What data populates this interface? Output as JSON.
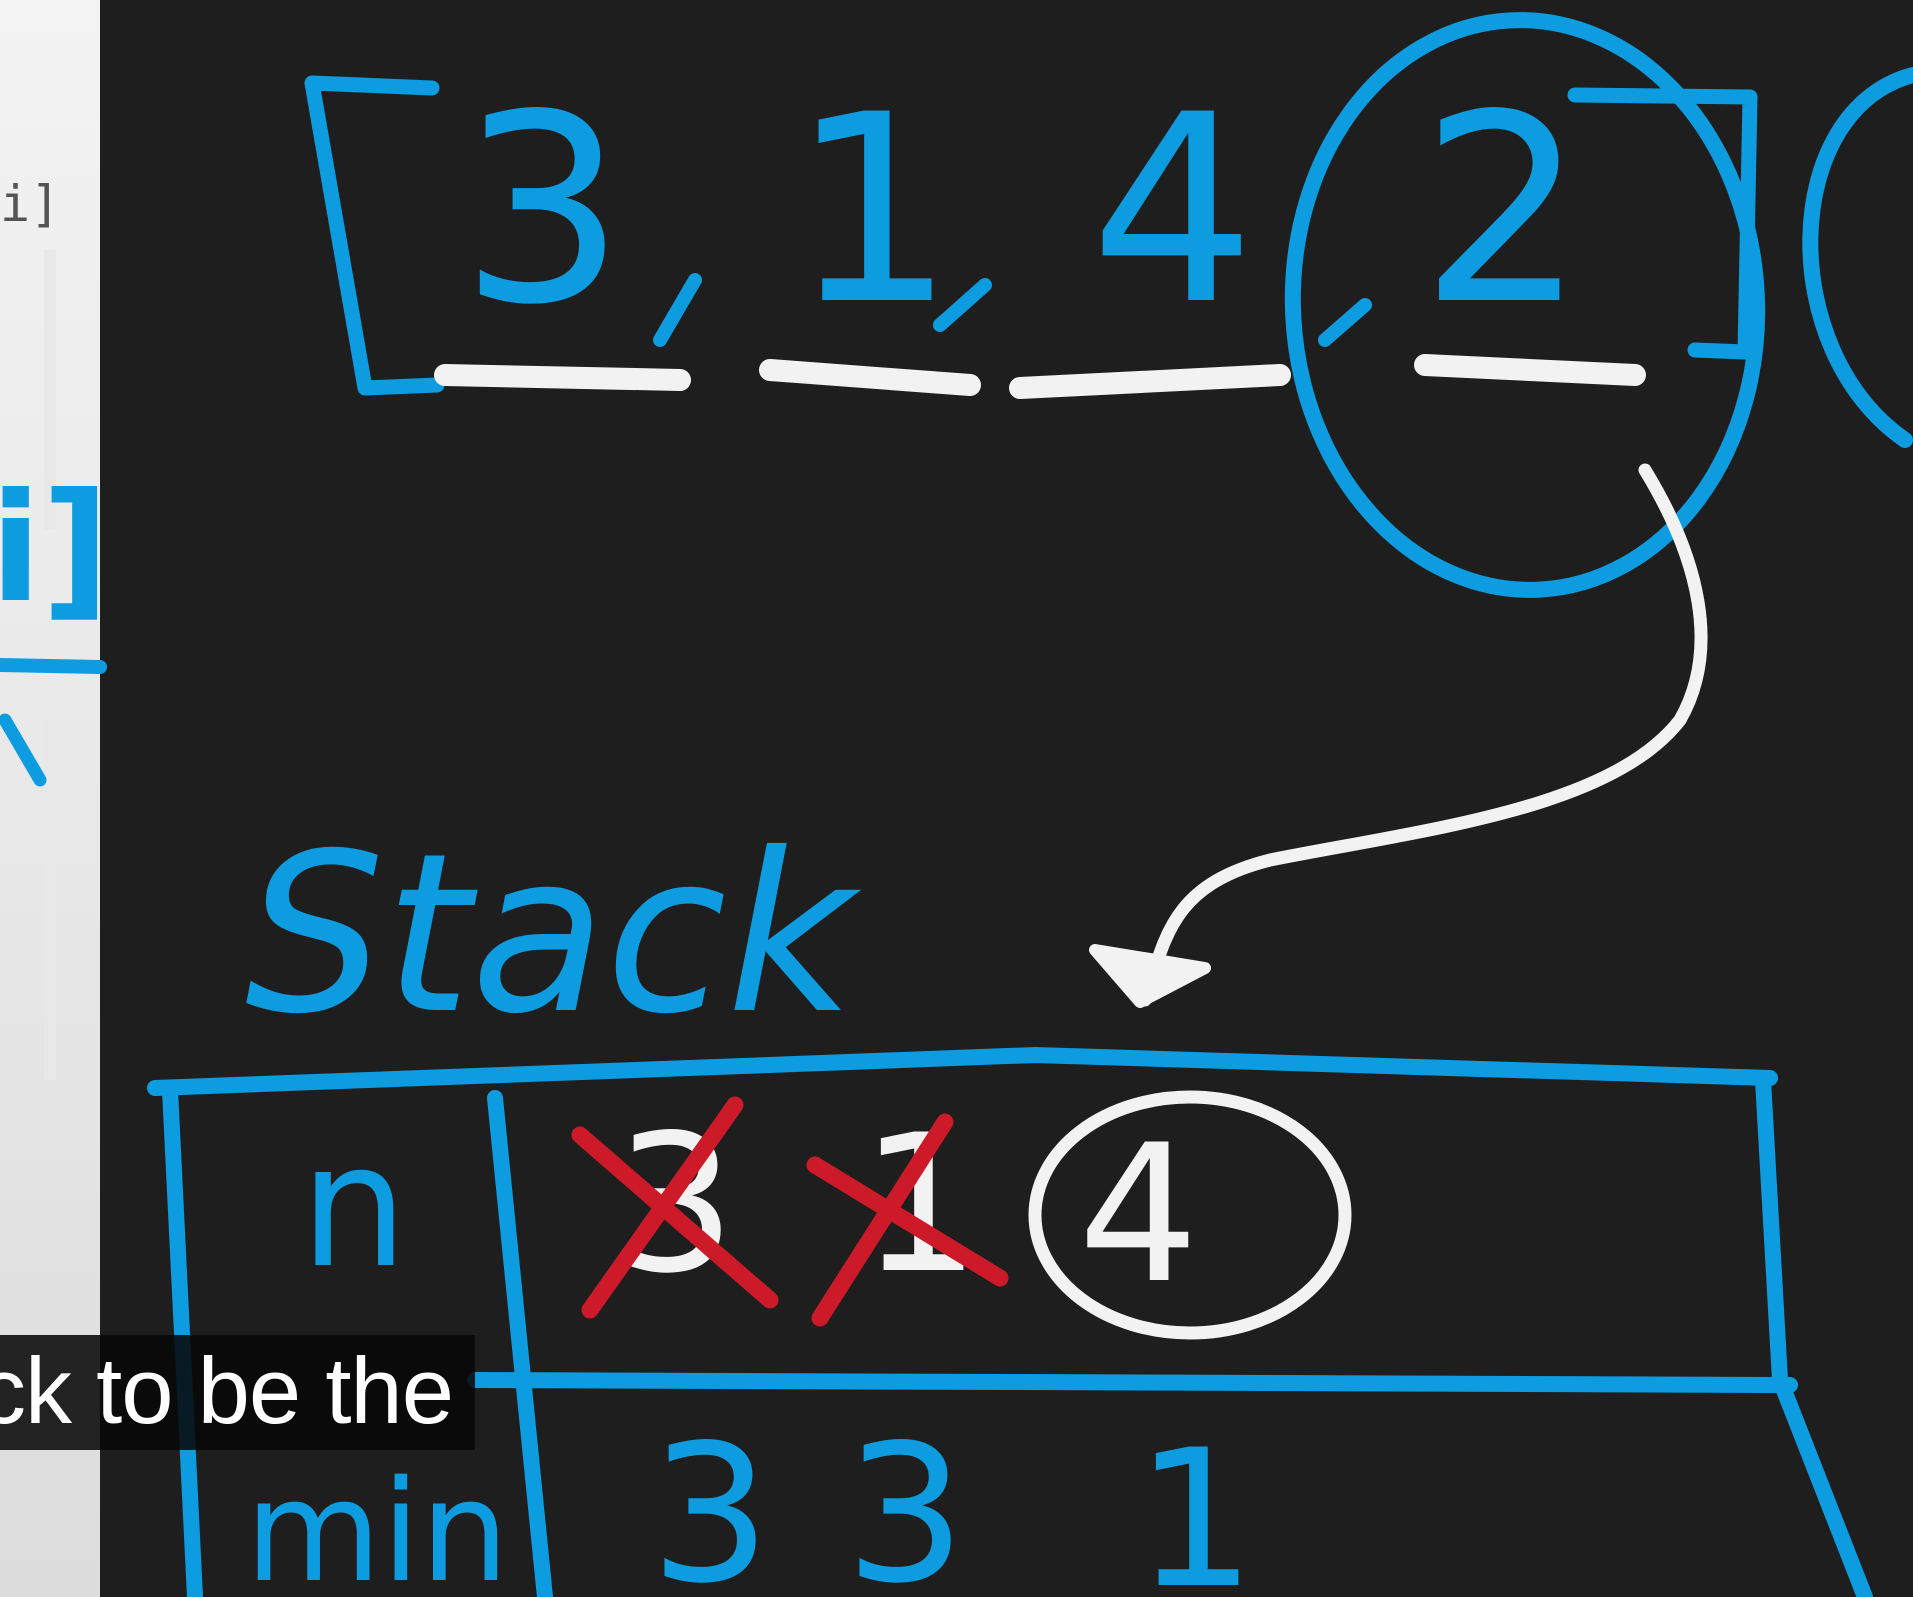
{
  "array": {
    "values": [
      "3",
      "1",
      "4",
      "2"
    ]
  },
  "side_panel": {
    "code_fragment": "i]",
    "bracket_fragment": "i]"
  },
  "stack": {
    "title": "Stack",
    "row_labels": [
      "n",
      "min"
    ],
    "n_values": [
      {
        "value": "3",
        "crossed": true
      },
      {
        "value": "1",
        "crossed": true
      },
      {
        "value": "4",
        "circled": true
      }
    ],
    "min_values": [
      "3",
      "3",
      "1"
    ]
  },
  "caption": {
    "text": "ck to be the"
  },
  "colors": {
    "background": "#1e1e1e",
    "blue_ink": "#0e9ce0",
    "white_ink": "#f2f2f2",
    "red_ink": "#cc1a28"
  }
}
